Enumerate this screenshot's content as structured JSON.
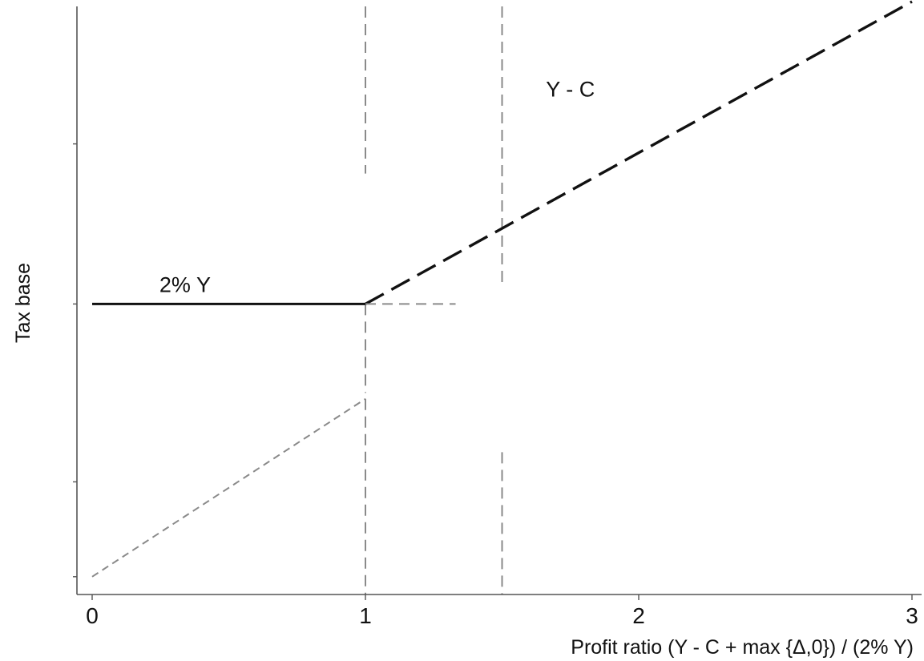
{
  "chart_data": {
    "type": "line",
    "title": "",
    "xlabel": "Profit ratio   (Y - C + max {Δ,0}) / (2% Y)",
    "ylabel": "Tax base",
    "xlim": [
      0,
      3
    ],
    "ylim": [
      0,
      1
    ],
    "xticks": [
      0,
      1,
      2,
      3
    ],
    "xtick_labels": [
      "0",
      "1",
      "2",
      "3"
    ],
    "ytick_labels": [],
    "grid": false,
    "series": [
      {
        "style": "solid",
        "color": "#111111",
        "x": [
          0,
          1
        ],
        "y": [
          0.49,
          0.49
        ]
      },
      {
        "style": "dashed",
        "color": "#111111",
        "x": [
          1,
          3
        ],
        "y": [
          0.49,
          1.0
        ]
      },
      {
        "style": "dashed",
        "color": "#8a8a8a",
        "x": [
          1,
          1.33
        ],
        "y": [
          0.49,
          0.49
        ]
      },
      {
        "style": "dashed",
        "color": "#8a8a8a",
        "x": [
          0,
          1
        ],
        "y": [
          0.03,
          0.33
        ]
      }
    ],
    "vlines": [
      {
        "x": 1,
        "style": "dashed",
        "color": "#8a8a8a"
      },
      {
        "x": 1.5,
        "style": "dashed",
        "color": "#8a8a8a"
      }
    ],
    "annotations": [
      {
        "text": "2% Y",
        "x": 0.34,
        "y": 0.51
      },
      {
        "text": "Y - C",
        "x": 1.75,
        "y": 0.84
      }
    ]
  }
}
